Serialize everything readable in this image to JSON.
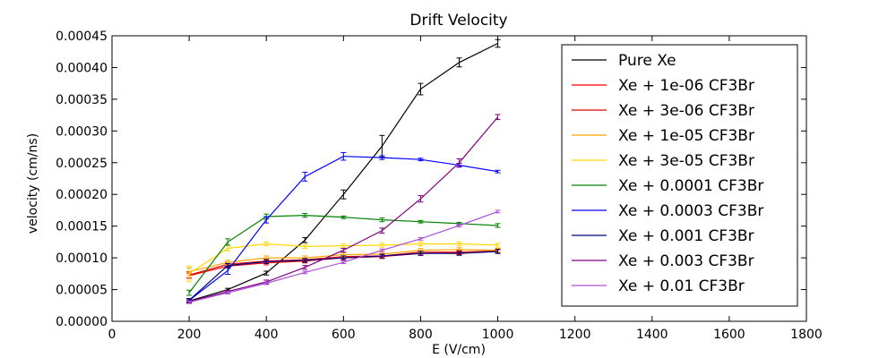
{
  "chart_data": {
    "type": "line",
    "title": "Drift Velocity",
    "xlabel": "E (V/cm)",
    "ylabel": "velocity (cm/ns)",
    "xlim": [
      0,
      1800
    ],
    "ylim": [
      0,
      0.00045
    ],
    "x_ticks": [
      "0",
      "200",
      "400",
      "600",
      "800",
      "1000",
      "1200",
      "1400",
      "1600",
      "1800"
    ],
    "y_ticks": [
      "0.00000",
      "0.00005",
      "0.00010",
      "0.00015",
      "0.00020",
      "0.00025",
      "0.00030",
      "0.00035",
      "0.00040",
      "0.00045"
    ],
    "grid": false,
    "legend_position": "top-right",
    "x": [
      200,
      300,
      400,
      500,
      600,
      700,
      800,
      900,
      1000
    ],
    "series": [
      {
        "name": "Pure Xe",
        "color": "#000000",
        "values": [
          3.2e-05,
          5e-05,
          7.6e-05,
          0.000128,
          0.0002,
          0.000276,
          0.000366,
          0.000408,
          0.000438
        ],
        "errors": [
          2e-06,
          2e-06,
          3e-06,
          4e-06,
          7e-06,
          1.7e-05,
          9e-06,
          7e-06,
          6e-06
        ]
      },
      {
        "name": "Xe + 1e-06 CF3Br",
        "color": "#ff0000",
        "values": [
          7.2e-05,
          8.7e-05,
          9.2e-05,
          9.5e-05,
          0.0001,
          0.000102,
          0.000107,
          0.000108,
          0.00011
        ],
        "errors": [
          4e-06,
          3e-06,
          3e-06,
          3e-06,
          3e-06,
          3e-06,
          3e-06,
          3e-06,
          3e-06
        ]
      },
      {
        "name": "Xe + 3e-06 CF3Br",
        "color": "#e00000",
        "values": [
          7.3e-05,
          9e-05,
          9.5e-05,
          9.7e-05,
          0.000102,
          0.000103,
          0.000109,
          0.000109,
          0.000111
        ],
        "errors": [
          5e-06,
          3e-06,
          3e-06,
          3e-06,
          3e-06,
          3e-06,
          3e-06,
          3e-06,
          3e-06
        ]
      },
      {
        "name": "Xe + 1e-05 CF3Br",
        "color": "#ffa500",
        "values": [
          7.8e-05,
          9.3e-05,
          0.0001,
          0.0001,
          0.000105,
          0.000106,
          0.000112,
          0.000113,
          0.000112
        ],
        "errors": [
          6e-06,
          3e-06,
          3e-06,
          3e-06,
          3e-06,
          3e-06,
          3e-06,
          3e-06,
          3e-06
        ]
      },
      {
        "name": "Xe + 3e-05 CF3Br",
        "color": "#ffd700",
        "values": [
          7.5e-05,
          0.000115,
          0.000122,
          0.000118,
          0.000119,
          0.00012,
          0.000122,
          0.000122,
          0.00012
        ],
        "errors": [
          1.2e-05,
          4e-06,
          3e-06,
          3e-06,
          3e-06,
          3e-06,
          3e-06,
          3e-06,
          3e-06
        ]
      },
      {
        "name": "Xe + 0.0001 CF3Br",
        "color": "#008000",
        "values": [
          4.5e-05,
          0.000125,
          0.000165,
          0.000167,
          0.000164,
          0.00016,
          0.000157,
          0.000154,
          0.000151
        ],
        "errors": [
          4e-06,
          5e-06,
          4e-06,
          3e-06,
          2e-06,
          3e-06,
          2e-06,
          2e-06,
          3e-06
        ]
      },
      {
        "name": "Xe + 0.0003 CF3Br",
        "color": "#0000ff",
        "values": [
          3.3e-05,
          8e-05,
          0.00016,
          0.000228,
          0.00026,
          0.000258,
          0.000255,
          0.000246,
          0.000236
        ],
        "errors": [
          3e-06,
          6e-06,
          5e-06,
          7e-06,
          6e-06,
          3e-06,
          2e-06,
          3e-06,
          2e-06
        ]
      },
      {
        "name": "Xe + 0.001 CF3Br",
        "color": "#000080",
        "values": [
          3.3e-05,
          8.8e-05,
          9.4e-05,
          9.6e-05,
          0.0001,
          0.000103,
          0.000107,
          0.000107,
          0.00011
        ],
        "errors": [
          3e-06,
          3e-06,
          3e-06,
          3e-06,
          3e-06,
          3e-06,
          3e-06,
          3e-06,
          3e-06
        ]
      },
      {
        "name": "Xe + 0.003 CF3Br",
        "color": "#800080",
        "values": [
          3.1e-05,
          4.7e-05,
          6.2e-05,
          8.5e-05,
          0.000112,
          0.000143,
          0.000193,
          0.00025,
          0.000322
        ],
        "errors": [
          2e-06,
          2e-06,
          3e-06,
          3e-06,
          3e-06,
          4e-06,
          5e-06,
          6e-06,
          4e-06
        ]
      },
      {
        "name": "Xe + 0.01 CF3Br",
        "color": "#b04fd8",
        "values": [
          3e-05,
          4.5e-05,
          6e-05,
          7.7e-05,
          9.3e-05,
          0.000112,
          0.00013,
          0.000151,
          0.000173
        ],
        "errors": [
          2e-06,
          2e-06,
          2e-06,
          2e-06,
          2e-06,
          2e-06,
          2e-06,
          2e-06,
          2e-06
        ]
      }
    ]
  }
}
